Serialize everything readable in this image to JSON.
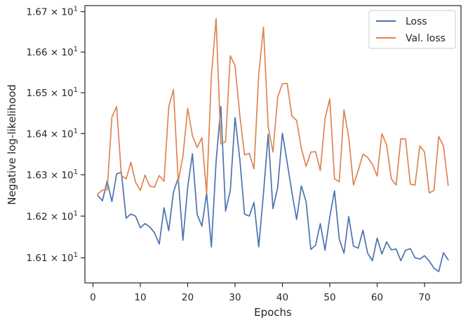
{
  "chart_data": {
    "type": "line",
    "xlabel": "Epochs",
    "ylabel": "Negative log-likelihood",
    "yscale": "log",
    "xlim": [
      -1.7,
      77.7
    ],
    "ylim": [
      16.04,
      16.715
    ],
    "xticks": [
      0,
      10,
      20,
      30,
      40,
      50,
      60,
      70
    ],
    "yticks": [
      {
        "value": 16.1,
        "mantissa": "1.61",
        "base": "10",
        "exp": "1"
      },
      {
        "value": 16.2,
        "mantissa": "1.62",
        "base": "10",
        "exp": "1"
      },
      {
        "value": 16.3,
        "mantissa": "1.63",
        "base": "10",
        "exp": "1"
      },
      {
        "value": 16.4,
        "mantissa": "1.64",
        "base": "10",
        "exp": "1"
      },
      {
        "value": 16.5,
        "mantissa": "1.65",
        "base": "10",
        "exp": "1"
      },
      {
        "value": 16.6,
        "mantissa": "1.66",
        "base": "10",
        "exp": "1"
      },
      {
        "value": 16.7,
        "mantissa": "1.67",
        "base": "10",
        "exp": "1"
      }
    ],
    "grid": false,
    "legend_position": "top-right",
    "series": [
      {
        "name": "Loss",
        "color": "#4c72b0",
        "x": [
          1,
          2,
          3,
          4,
          5,
          6,
          7,
          8,
          9,
          10,
          11,
          12,
          13,
          14,
          15,
          16,
          17,
          18,
          19,
          20,
          21,
          22,
          23,
          24,
          25,
          26,
          27,
          28,
          29,
          30,
          31,
          32,
          33,
          34,
          35,
          36,
          37,
          38,
          39,
          40,
          41,
          42,
          43,
          44,
          45,
          46,
          47,
          48,
          49,
          50,
          51,
          52,
          53,
          54,
          55,
          56,
          57,
          58,
          59,
          60,
          61,
          62,
          63,
          64,
          65,
          66,
          67,
          68,
          69,
          70,
          71,
          72,
          73,
          74,
          75
        ],
        "y": [
          16.25,
          16.237,
          16.285,
          16.235,
          16.302,
          16.306,
          16.195,
          16.205,
          16.2,
          16.172,
          16.182,
          16.174,
          16.16,
          16.133,
          16.22,
          16.165,
          16.258,
          16.292,
          16.142,
          16.27,
          16.351,
          16.204,
          16.176,
          16.255,
          16.126,
          16.332,
          16.466,
          16.212,
          16.262,
          16.439,
          16.338,
          16.205,
          16.2,
          16.233,
          16.126,
          16.255,
          16.398,
          16.218,
          16.269,
          16.401,
          16.33,
          16.257,
          16.192,
          16.273,
          16.235,
          16.12,
          16.13,
          16.182,
          16.118,
          16.198,
          16.261,
          16.145,
          16.111,
          16.199,
          16.128,
          16.123,
          16.166,
          16.111,
          16.093,
          16.147,
          16.109,
          16.138,
          16.119,
          16.121,
          16.093,
          16.118,
          16.122,
          16.1,
          16.097,
          16.105,
          16.092,
          16.075,
          16.067,
          16.112,
          16.095
        ]
      },
      {
        "name": "Val. loss",
        "color": "#dd8452",
        "x": [
          1,
          2,
          3,
          4,
          5,
          6,
          7,
          8,
          9,
          10,
          11,
          12,
          13,
          14,
          15,
          16,
          17,
          18,
          19,
          20,
          21,
          22,
          23,
          24,
          25,
          26,
          27,
          28,
          29,
          30,
          31,
          32,
          33,
          34,
          35,
          36,
          37,
          38,
          39,
          40,
          41,
          42,
          43,
          44,
          45,
          46,
          47,
          48,
          49,
          50,
          51,
          52,
          53,
          54,
          55,
          56,
          57,
          58,
          59,
          60,
          61,
          62,
          63,
          64,
          65,
          66,
          67,
          68,
          69,
          70,
          71,
          72,
          73,
          74,
          75
        ],
        "y": [
          16.253,
          16.263,
          16.263,
          16.44,
          16.466,
          16.298,
          16.29,
          16.33,
          16.282,
          16.262,
          16.299,
          16.272,
          16.27,
          16.298,
          16.284,
          16.465,
          16.508,
          16.284,
          16.345,
          16.462,
          16.395,
          16.366,
          16.39,
          16.255,
          16.54,
          16.683,
          16.375,
          16.38,
          16.591,
          16.566,
          16.445,
          16.348,
          16.352,
          16.314,
          16.545,
          16.662,
          16.417,
          16.355,
          16.489,
          16.522,
          16.523,
          16.443,
          16.432,
          16.364,
          16.32,
          16.355,
          16.356,
          16.31,
          16.437,
          16.485,
          16.29,
          16.283,
          16.458,
          16.39,
          16.275,
          16.31,
          16.35,
          16.342,
          16.325,
          16.297,
          16.4,
          16.372,
          16.29,
          16.275,
          16.387,
          16.387,
          16.277,
          16.275,
          16.37,
          16.355,
          16.256,
          16.262,
          16.393,
          16.37,
          16.274
        ]
      }
    ]
  }
}
